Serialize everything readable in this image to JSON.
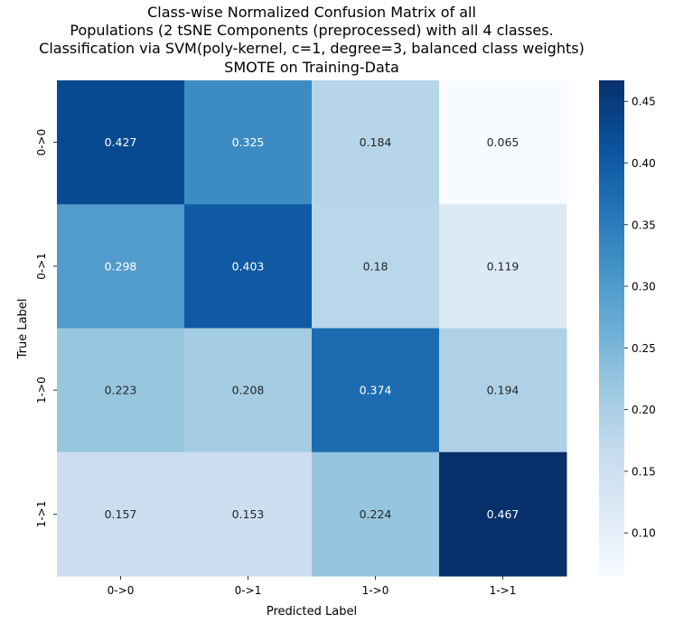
{
  "chart_data": {
    "type": "heatmap",
    "title_lines": [
      "Class-wise Normalized Confusion Matrix of all",
      "Populations (2 tSNE Components (preprocessed) with all 4 classes.",
      "Classification via SVM(poly-kernel, c=1, degree=3, balanced class weights)",
      "SMOTE on Training-Data"
    ],
    "xlabel": "Predicted Label",
    "ylabel": "True Label",
    "x_categories": [
      "0->0",
      "0->1",
      "1->0",
      "1->1"
    ],
    "y_categories": [
      "0->0",
      "0->1",
      "1->0",
      "1->1"
    ],
    "values": [
      [
        0.427,
        0.325,
        0.184,
        0.065
      ],
      [
        0.298,
        0.403,
        0.18,
        0.119
      ],
      [
        0.223,
        0.208,
        0.374,
        0.194
      ],
      [
        0.157,
        0.153,
        0.224,
        0.467
      ]
    ],
    "value_labels": [
      [
        "0.427",
        "0.325",
        "0.184",
        "0.065"
      ],
      [
        "0.298",
        "0.403",
        "0.18",
        "0.119"
      ],
      [
        "0.223",
        "0.208",
        "0.374",
        "0.194"
      ],
      [
        "0.157",
        "0.153",
        "0.224",
        "0.467"
      ]
    ],
    "colormap": "Blues",
    "vmin": 0.065,
    "vmax": 0.467,
    "colorbar_ticks": [
      0.1,
      0.15,
      0.2,
      0.25,
      0.3,
      0.35,
      0.4,
      0.45
    ],
    "colorbar_tick_labels": [
      "0.10",
      "0.15",
      "0.20",
      "0.25",
      "0.30",
      "0.35",
      "0.40",
      "0.45"
    ],
    "colorbar_position": "right",
    "grid": false
  }
}
